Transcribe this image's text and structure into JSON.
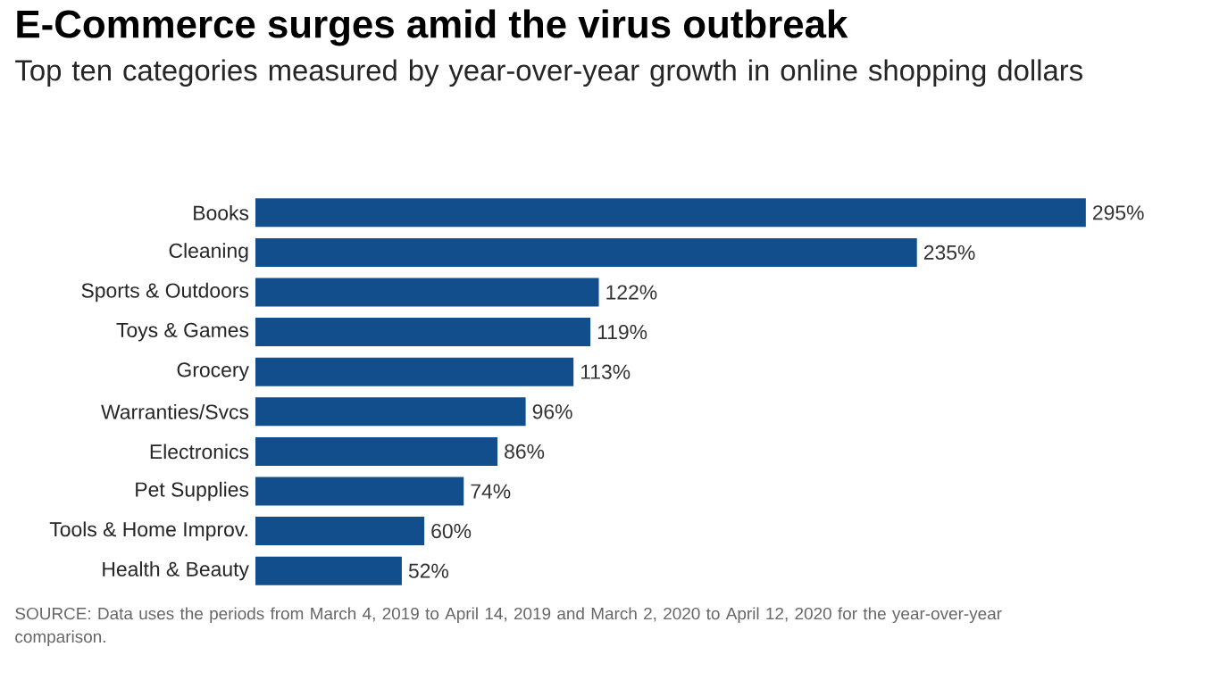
{
  "chart_data": {
    "type": "bar",
    "orientation": "horizontal",
    "title": "E-Commerce surges amid the virus outbreak",
    "subtitle": "Top ten categories measured by year-over-year growth in online shopping dollars",
    "categories": [
      "Books",
      "Cleaning",
      "Sports & Outdoors",
      "Toys & Games",
      "Grocery",
      "Warranties/Svcs",
      "Electronics",
      "Pet Supplies",
      "Tools & Home Improv.",
      "Health & Beauty"
    ],
    "values": [
      295,
      235,
      122,
      119,
      113,
      96,
      86,
      74,
      60,
      52
    ],
    "value_labels": [
      "295%",
      "235%",
      "122%",
      "119%",
      "113%",
      "96%",
      "86%",
      "74%",
      "60%",
      "52%"
    ],
    "color": "#124e8c",
    "annotations": [
      "SOURCE: Data uses the periods from March 4, 2019 to April 14, 2019 and March 2, 2020 to April 12, 2020 for the year-over-year comparison."
    ]
  }
}
